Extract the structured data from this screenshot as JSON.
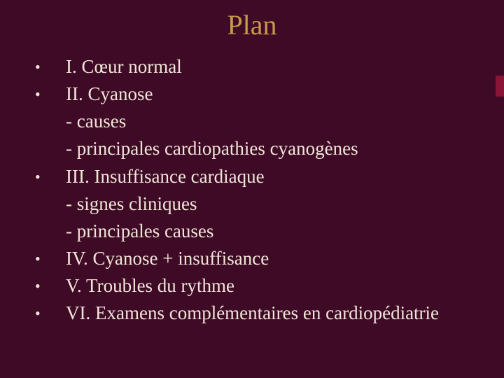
{
  "colors": {
    "background": "#3f0a26",
    "title": "#c69a4a",
    "text": "#f0e6d8",
    "accent": "#8a1437"
  },
  "title": "Plan",
  "lines": [
    {
      "bullet": "•",
      "text": "I. Cœur normal"
    },
    {
      "bullet": "•",
      "text": "II. Cyanose"
    },
    {
      "bullet": "",
      "text": "- causes"
    },
    {
      "bullet": "",
      "text": "- principales cardiopathies cyanogènes"
    },
    {
      "bullet": "•",
      "text": "III. Insuffisance cardiaque"
    },
    {
      "bullet": "",
      "text": "- signes cliniques"
    },
    {
      "bullet": "",
      "text": "- principales causes"
    },
    {
      "bullet": "•",
      "text": "IV. Cyanose + insuffisance"
    },
    {
      "bullet": "•",
      "text": "V. Troubles du rythme"
    },
    {
      "bullet": "•",
      "text": "VI. Examens complémentaires en cardiopédiatrie"
    }
  ]
}
